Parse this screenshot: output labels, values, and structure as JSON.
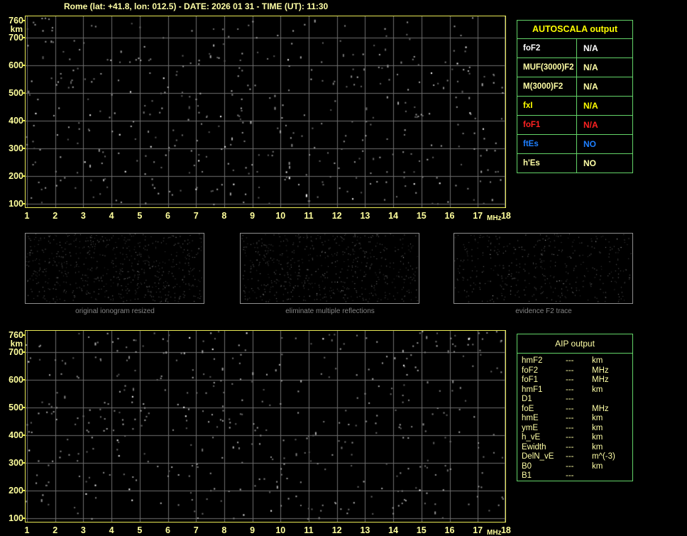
{
  "title": "Rome (lat: +41.8, lon: 012.5) - DATE: 2026 01 31 - TIME (UT): 11:30",
  "colors": {
    "background": "#000000",
    "title_text": "#ffffa6",
    "axis_text": "#ffff9c",
    "plot_border": "#e9e955",
    "grid_line": "#6e6e6e",
    "table_border": "#63d468",
    "autoscala_header": "#ffff00",
    "aip_text": "#ffffa6",
    "caption_text": "#848484",
    "thumb_border": "#8f8f8f"
  },
  "ionogram_top": {
    "y_unit": "km",
    "x_unit": "MHz",
    "y_ticks": [
      "760",
      "700",
      "600",
      "500",
      "400",
      "300",
      "200",
      "100"
    ],
    "x_ticks": [
      "1",
      "2",
      "3",
      "4",
      "5",
      "6",
      "7",
      "8",
      "9",
      "10",
      "11",
      "12",
      "13",
      "14",
      "15",
      "16",
      "17",
      "18"
    ],
    "y_range": [
      100,
      760
    ],
    "x_range": [
      1,
      18
    ]
  },
  "ionogram_bottom": {
    "y_unit": "km",
    "x_unit": "MHz",
    "y_ticks": [
      "760",
      "700",
      "600",
      "500",
      "400",
      "300",
      "200",
      "100"
    ],
    "x_ticks": [
      "1",
      "2",
      "3",
      "4",
      "5",
      "6",
      "7",
      "8",
      "9",
      "10",
      "11",
      "12",
      "13",
      "14",
      "15",
      "16",
      "17",
      "18"
    ],
    "y_range": [
      100,
      760
    ],
    "x_range": [
      1,
      18
    ]
  },
  "autoscala_table": {
    "header": "AUTOSCALA output",
    "rows": [
      {
        "label": "foF2",
        "value": "N/A",
        "color": "#ffffff"
      },
      {
        "label": "MUF(3000)F2",
        "value": "N/A",
        "color": "#ffffa6"
      },
      {
        "label": "M(3000)F2",
        "value": "N/A",
        "color": "#ffffa6"
      },
      {
        "label": "fxI",
        "value": "N/A",
        "color": "#ffff00"
      },
      {
        "label": "foF1",
        "value": "N/A",
        "color": "#ff2222"
      },
      {
        "label": "ftEs",
        "value": "NO",
        "color": "#1e7fff"
      },
      {
        "label": "h'Es",
        "value": "NO",
        "color": "#ffffa6"
      }
    ]
  },
  "thumbnails": [
    {
      "caption": "original ionogram resized"
    },
    {
      "caption": "eliminate multiple reflections"
    },
    {
      "caption": "evidence F2 trace"
    }
  ],
  "aip_table": {
    "header": "AIP output",
    "rows": [
      {
        "param": "hmF2",
        "value": "---",
        "unit": "km"
      },
      {
        "param": "foF2",
        "value": "---",
        "unit": "MHz"
      },
      {
        "param": "foF1",
        "value": "---",
        "unit": "MHz"
      },
      {
        "param": "hmF1",
        "value": "---",
        "unit": "km"
      },
      {
        "param": "D1",
        "value": "---",
        "unit": ""
      },
      {
        "param": "foE",
        "value": "---",
        "unit": "MHz"
      },
      {
        "param": "hmE",
        "value": "---",
        "unit": "km"
      },
      {
        "param": "ymE",
        "value": "---",
        "unit": "km"
      },
      {
        "param": "h_vE",
        "value": "---",
        "unit": "km"
      },
      {
        "param": "Ewidth",
        "value": "---",
        "unit": "km"
      },
      {
        "param": "DelN_vE",
        "value": "---",
        "unit": "m^(-3)"
      },
      {
        "param": "B0",
        "value": "---",
        "unit": "km"
      },
      {
        "param": "B1",
        "value": "---",
        "unit": ""
      }
    ]
  }
}
